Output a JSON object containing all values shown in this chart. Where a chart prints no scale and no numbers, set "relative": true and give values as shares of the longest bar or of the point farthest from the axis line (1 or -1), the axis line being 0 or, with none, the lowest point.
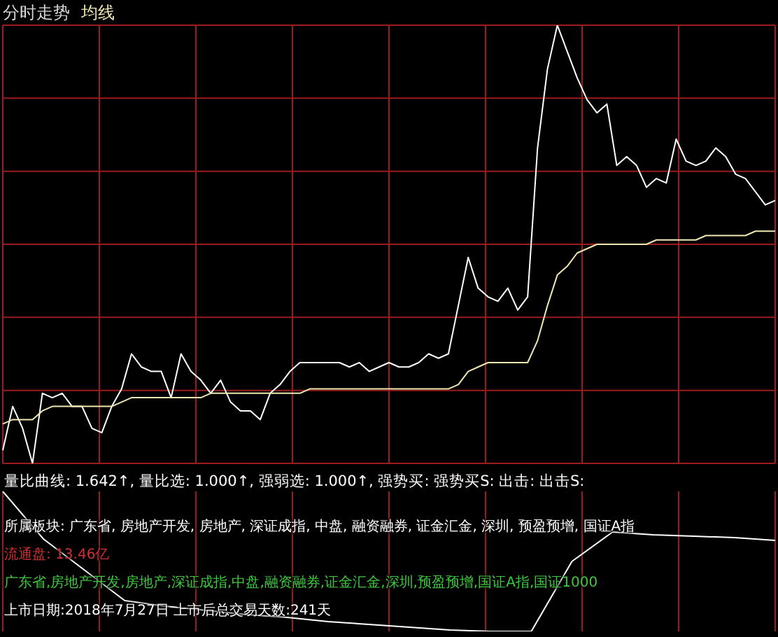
{
  "chart_data": [
    {
      "type": "line",
      "title": "分时走势",
      "relative": true,
      "grid": true,
      "legend": "top left",
      "categories": [
        null,
        null,
        null,
        null,
        null,
        null,
        null,
        null,
        null,
        null,
        null,
        null,
        null,
        null,
        null,
        null,
        null,
        null,
        null,
        null,
        null,
        null,
        null,
        null,
        null,
        null,
        null,
        null,
        null,
        null,
        null,
        null,
        null,
        null,
        null,
        null,
        null,
        null,
        null,
        null,
        null,
        null,
        null,
        null,
        null,
        null,
        null,
        null,
        null,
        null,
        null,
        null,
        null,
        null,
        null,
        null,
        null,
        null,
        null,
        null,
        null,
        null,
        null,
        null,
        null,
        null,
        null,
        null,
        null,
        null,
        null,
        null,
        null,
        null,
        null,
        null,
        null,
        null,
        null
      ],
      "series": [
        {
          "color": "#ffffff",
          "values": [
            0.03,
            0.13,
            0.08,
            0.0,
            0.16,
            0.15,
            0.16,
            0.13,
            0.13,
            0.08,
            0.07,
            0.13,
            0.17,
            0.25,
            0.22,
            0.21,
            0.21,
            0.15,
            0.25,
            0.21,
            0.19,
            0.16,
            0.19,
            0.14,
            0.12,
            0.12,
            0.1,
            0.16,
            0.18,
            0.21,
            0.23,
            0.23,
            0.23,
            0.23,
            0.23,
            0.22,
            0.23,
            0.21,
            0.22,
            0.23,
            0.22,
            0.22,
            0.23,
            0.25,
            0.24,
            0.25,
            0.36,
            0.47,
            0.4,
            0.38,
            0.37,
            0.4,
            0.35,
            0.38,
            0.72,
            0.9,
            1.0,
            0.94,
            0.88,
            0.83,
            0.8,
            0.82,
            0.68,
            0.7,
            0.68,
            0.63,
            0.65,
            0.64,
            0.74,
            0.69,
            0.68,
            0.69,
            0.72,
            0.7,
            0.66,
            0.65,
            0.62,
            0.59,
            0.6
          ]
        },
        {
          "name": "均线",
          "color": "#f0e6b0",
          "values": [
            0.09,
            0.1,
            0.1,
            0.1,
            0.12,
            0.13,
            0.13,
            0.13,
            0.13,
            0.13,
            0.13,
            0.13,
            0.14,
            0.15,
            0.15,
            0.15,
            0.15,
            0.15,
            0.15,
            0.15,
            0.15,
            0.16,
            0.16,
            0.16,
            0.16,
            0.16,
            0.16,
            0.16,
            0.16,
            0.16,
            0.16,
            0.17,
            0.17,
            0.17,
            0.17,
            0.17,
            0.17,
            0.17,
            0.17,
            0.17,
            0.17,
            0.17,
            0.17,
            0.17,
            0.17,
            0.17,
            0.18,
            0.21,
            0.22,
            0.23,
            0.23,
            0.23,
            0.23,
            0.23,
            0.28,
            0.36,
            0.43,
            0.45,
            0.48,
            0.49,
            0.5,
            0.5,
            0.5,
            0.5,
            0.5,
            0.5,
            0.51,
            0.51,
            0.51,
            0.51,
            0.51,
            0.52,
            0.52,
            0.52,
            0.52,
            0.52,
            0.53,
            0.53,
            0.53
          ]
        }
      ]
    },
    {
      "type": "line",
      "relative": true,
      "grid": "x",
      "categories": [
        null,
        null,
        null,
        null,
        null,
        null,
        null,
        null,
        null,
        null,
        null,
        null,
        null,
        null,
        null,
        null,
        null,
        null,
        null,
        null
      ],
      "series": [
        {
          "color": "#ffffff",
          "values": [
            1.0,
            0.66,
            0.44,
            0.22,
            0.18,
            0.15,
            0.12,
            0.1,
            0.07,
            0.05,
            0.03,
            0.01,
            0.0,
            0.0,
            0.5,
            0.71,
            0.69,
            0.68,
            0.67,
            0.65
          ]
        }
      ],
      "annotations": [
        "量比曲线: 1.642↑, 量比选: 1.000↑, 强弱选: 1.000↑, 强势买: 强势买S: 出击: 出击S:",
        "所属板块:  广东省, 房地产开发, 房地产, 深证成指, 中盘, 融资融券, 证金汇金, 深圳, 预盈预增, 国证A指",
        "流通盘: 13.46亿",
        "广东省,房地产开发,房地产,深证成指,中盘,融资融券,证金汇金,深圳,预盈预增,国证A指,国证1000",
        "上市日期:2018年7月27日 上市后总交易天数:241天"
      ]
    }
  ]
}
